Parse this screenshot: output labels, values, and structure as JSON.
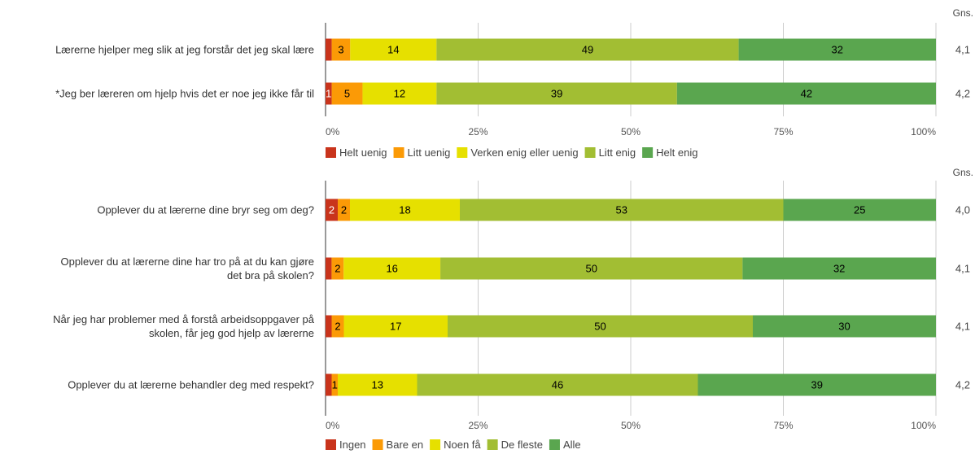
{
  "charts": [
    {
      "gns_label": "Gns.",
      "ticks": [
        "0%",
        "25%",
        "50%",
        "75%",
        "100%"
      ],
      "rows": [
        {
          "label": [
            "Lærerne hjelper meg slik at jeg forstår det jeg skal lære"
          ],
          "values": [
            1,
            3,
            14,
            49,
            32
          ],
          "labels": [
            "",
            "3",
            "14",
            "49",
            "32"
          ],
          "avg": "4,1"
        },
        {
          "label": [
            "*Jeg ber læreren om hjelp hvis det er noe jeg ikke får til"
          ],
          "values": [
            1,
            5,
            12,
            39,
            42
          ],
          "labels": [
            "1",
            "5",
            "12",
            "39",
            "42"
          ],
          "avg": "4,2"
        }
      ],
      "legend": [
        "Helt uenig",
        "Litt uenig",
        "Verken enig eller uenig",
        "Litt enig",
        "Helt enig"
      ]
    },
    {
      "gns_label": "Gns.",
      "ticks": [
        "0%",
        "25%",
        "50%",
        "75%",
        "100%"
      ],
      "rows": [
        {
          "label": [
            "Opplever du at lærerne dine bryr seg om deg?"
          ],
          "values": [
            2,
            2,
            18,
            53,
            25
          ],
          "labels": [
            "2",
            "2",
            "18",
            "53",
            "25"
          ],
          "avg": "4,0"
        },
        {
          "label": [
            "Opplever du at lærerne dine har tro på at du kan gjøre",
            "det bra på skolen?"
          ],
          "values": [
            1,
            2,
            16,
            50,
            32
          ],
          "labels": [
            "",
            "2",
            "16",
            "50",
            "32"
          ],
          "avg": "4,1"
        },
        {
          "label": [
            "Når jeg har problemer med å forstå arbeidsoppgaver på",
            "skolen, får jeg god hjelp av lærerne"
          ],
          "values": [
            1,
            2,
            17,
            50,
            30
          ],
          "labels": [
            "",
            "2",
            "17",
            "50",
            "30"
          ],
          "avg": "4,1"
        },
        {
          "label": [
            "Opplever du at lærerne behandler deg med respekt?"
          ],
          "values": [
            1,
            1,
            13,
            46,
            39
          ],
          "labels": [
            "",
            "1",
            "13",
            "46",
            "39"
          ],
          "avg": "4,2"
        }
      ],
      "legend": [
        "Ingen",
        "Bare en",
        "Noen få",
        "De fleste",
        "Alle"
      ]
    }
  ],
  "colors": [
    "#c9341c",
    "#fb9a06",
    "#e6e000",
    "#a2be33",
    "#5aa64f"
  ],
  "chart_data": [
    {
      "type": "bar",
      "orientation": "horizontal-stacked-100",
      "categories": [
        "Lærerne hjelper meg slik at jeg forstår det jeg skal lære",
        "*Jeg ber læreren om hjelp hvis det er noe jeg ikke får til"
      ],
      "series": [
        {
          "name": "Helt uenig",
          "values": [
            1,
            1
          ]
        },
        {
          "name": "Litt uenig",
          "values": [
            3,
            5
          ]
        },
        {
          "name": "Verken enig eller uenig",
          "values": [
            14,
            12
          ]
        },
        {
          "name": "Litt enig",
          "values": [
            49,
            39
          ]
        },
        {
          "name": "Helt enig",
          "values": [
            32,
            42
          ]
        }
      ],
      "average": [
        "4,1",
        "4,2"
      ],
      "xlim": [
        0,
        100
      ],
      "grid": true,
      "legend_position": "bottom"
    },
    {
      "type": "bar",
      "orientation": "horizontal-stacked-100",
      "categories": [
        "Opplever du at lærerne dine bryr seg om deg?",
        "Opplever du at lærerne dine har tro på at du kan gjøre det bra på skolen?",
        "Når jeg har problemer med å forstå arbeidsoppgaver på skolen, får jeg god hjelp av lærerne",
        "Opplever du at lærerne behandler deg med respekt?"
      ],
      "series": [
        {
          "name": "Ingen",
          "values": [
            2,
            1,
            1,
            1
          ]
        },
        {
          "name": "Bare en",
          "values": [
            2,
            2,
            2,
            1
          ]
        },
        {
          "name": "Noen få",
          "values": [
            18,
            16,
            17,
            13
          ]
        },
        {
          "name": "De fleste",
          "values": [
            53,
            50,
            50,
            46
          ]
        },
        {
          "name": "Alle",
          "values": [
            25,
            32,
            30,
            39
          ]
        }
      ],
      "average": [
        "4,0",
        "4,1",
        "4,1",
        "4,2"
      ],
      "xlim": [
        0,
        100
      ],
      "grid": true,
      "legend_position": "bottom"
    }
  ]
}
